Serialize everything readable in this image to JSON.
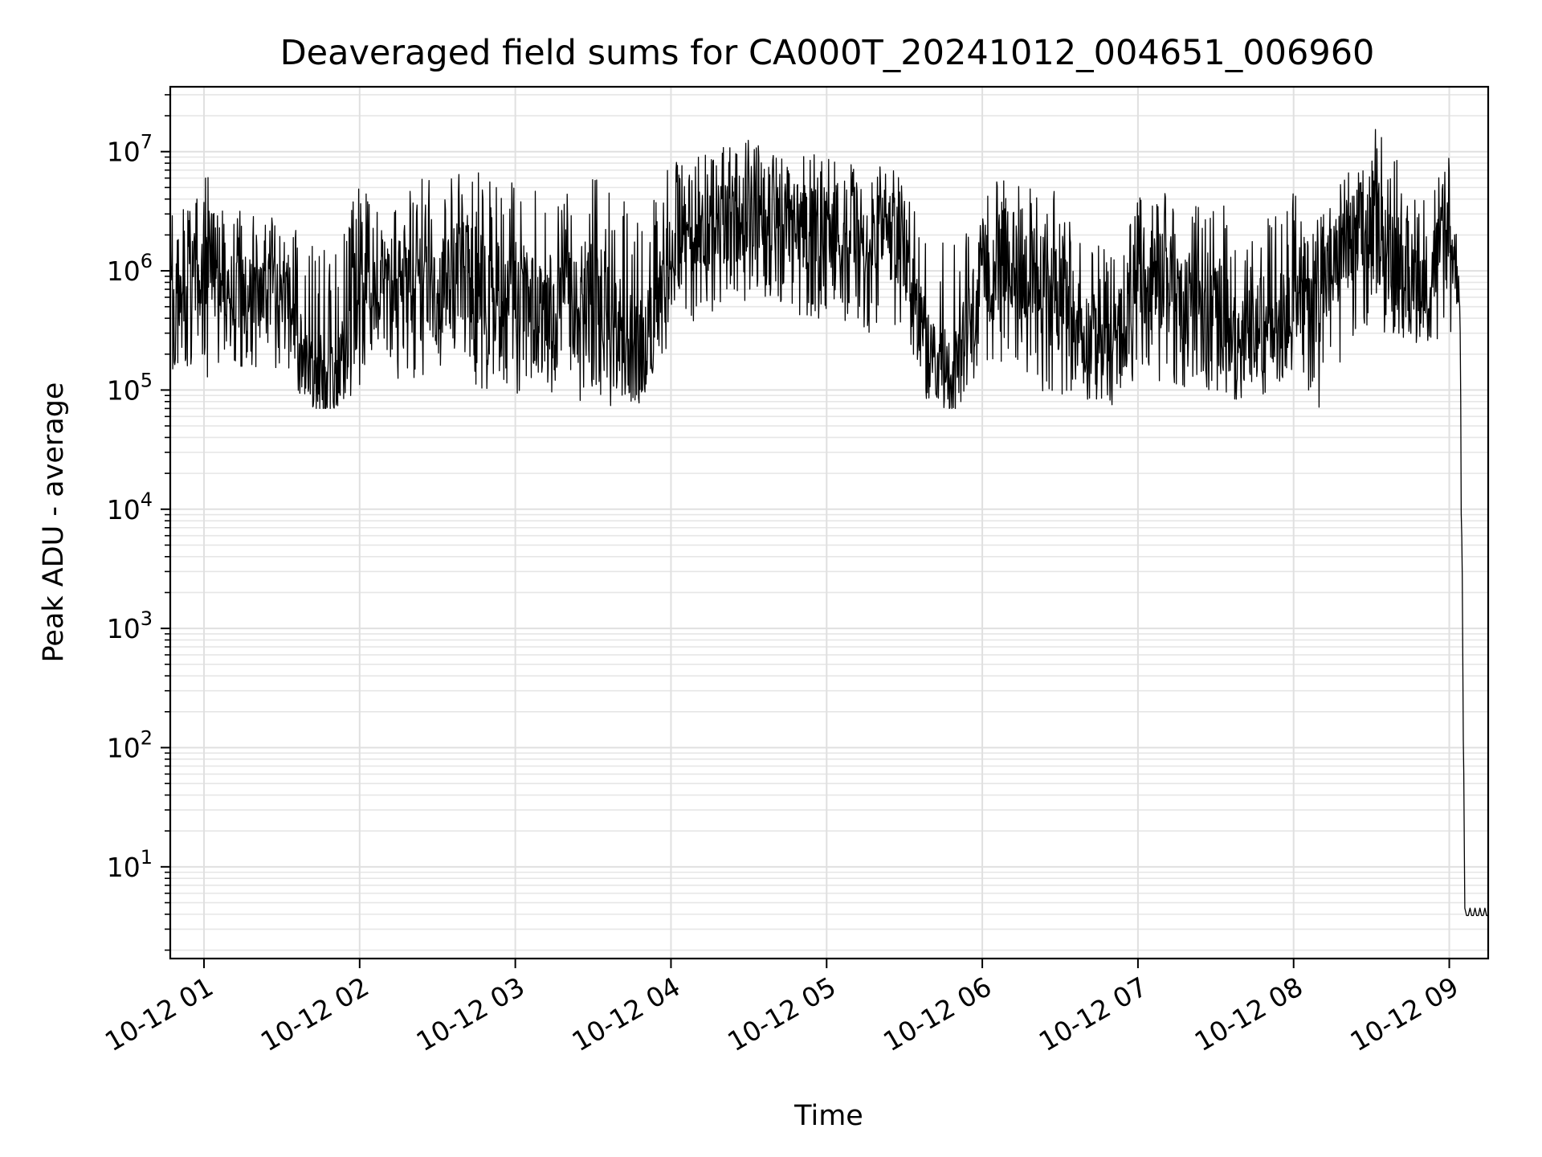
{
  "chart_data": {
    "type": "line",
    "title": "Deaveraged field sums for CA000T_20241012_004651_006960",
    "xlabel": "Time",
    "ylabel": "Peak ADU - average",
    "yscale": "log",
    "ylim": [
      1.7,
      35000000
    ],
    "xlim": [
      "2024-10-12T00:47:00",
      "2024-10-12T09:15:00"
    ],
    "grid": true,
    "line_color": "#000000",
    "x_ticks": [
      {
        "value": "2024-10-12T01:00:00",
        "label": "10-12 01"
      },
      {
        "value": "2024-10-12T02:00:00",
        "label": "10-12 02"
      },
      {
        "value": "2024-10-12T03:00:00",
        "label": "10-12 03"
      },
      {
        "value": "2024-10-12T04:00:00",
        "label": "10-12 04"
      },
      {
        "value": "2024-10-12T05:00:00",
        "label": "10-12 05"
      },
      {
        "value": "2024-10-12T06:00:00",
        "label": "10-12 06"
      },
      {
        "value": "2024-10-12T07:00:00",
        "label": "10-12 07"
      },
      {
        "value": "2024-10-12T08:00:00",
        "label": "10-12 08"
      },
      {
        "value": "2024-10-12T09:00:00",
        "label": "10-12 09"
      }
    ],
    "y_ticks": [
      {
        "value": 10,
        "base": "10",
        "exp": "1"
      },
      {
        "value": 100,
        "base": "10",
        "exp": "2"
      },
      {
        "value": 1000,
        "base": "10",
        "exp": "3"
      },
      {
        "value": 10000,
        "base": "10",
        "exp": "4"
      },
      {
        "value": 100000,
        "base": "10",
        "exp": "5"
      },
      {
        "value": 1000000,
        "base": "10",
        "exp": "6"
      },
      {
        "value": 10000000,
        "base": "10",
        "exp": "7"
      }
    ],
    "series": [
      {
        "x": [
          "2024-10-12T00:47:00",
          "2024-10-12T01:00:00",
          "2024-10-12T01:10:00",
          "2024-10-12T01:20:00",
          "2024-10-12T01:30:00",
          "2024-10-12T01:40:00",
          "2024-10-12T01:50:00",
          "2024-10-12T02:00:00",
          "2024-10-12T02:10:00",
          "2024-10-12T02:20:00",
          "2024-10-12T02:30:00",
          "2024-10-12T02:40:00",
          "2024-10-12T02:50:00",
          "2024-10-12T03:00:00",
          "2024-10-12T03:10:00",
          "2024-10-12T03:20:00",
          "2024-10-12T03:30:00",
          "2024-10-12T03:40:00",
          "2024-10-12T03:50:00",
          "2024-10-12T04:00:00",
          "2024-10-12T04:10:00",
          "2024-10-12T04:20:00",
          "2024-10-12T04:30:00",
          "2024-10-12T04:40:00",
          "2024-10-12T04:50:00",
          "2024-10-12T05:00:00",
          "2024-10-12T05:10:00",
          "2024-10-12T05:20:00",
          "2024-10-12T05:30:00",
          "2024-10-12T05:40:00",
          "2024-10-12T05:50:00",
          "2024-10-12T06:00:00",
          "2024-10-12T06:10:00",
          "2024-10-12T06:20:00",
          "2024-10-12T06:30:00",
          "2024-10-12T06:40:00",
          "2024-10-12T06:50:00",
          "2024-10-12T07:00:00",
          "2024-10-12T07:10:00",
          "2024-10-12T07:20:00",
          "2024-10-12T07:30:00",
          "2024-10-12T07:40:00",
          "2024-10-12T07:50:00",
          "2024-10-12T08:00:00",
          "2024-10-12T08:10:00",
          "2024-10-12T08:20:00",
          "2024-10-12T08:30:00",
          "2024-10-12T08:40:00",
          "2024-10-12T08:50:00",
          "2024-10-12T09:00:00",
          "2024-10-12T09:04:00",
          "2024-10-12T09:06:00",
          "2024-10-12T09:08:00",
          "2024-10-12T09:15:00"
        ],
        "y_median": [
          600000,
          1500000,
          700000,
          500000,
          900000,
          150000,
          100000,
          700000,
          800000,
          900000,
          600000,
          1000000,
          500000,
          600000,
          400000,
          500000,
          600000,
          300000,
          200000,
          1200000,
          2000000,
          2500000,
          3000000,
          3000000,
          2500000,
          2500000,
          2000000,
          2500000,
          1500000,
          150000,
          130000,
          900000,
          1200000,
          800000,
          600000,
          300000,
          200000,
          800000,
          900000,
          600000,
          500000,
          250000,
          400000,
          700000,
          700000,
          1500000,
          2500000,
          1500000,
          800000,
          2000000,
          800000,
          3.9,
          3.9,
          3.9
        ],
        "y_low": [
          150000,
          110000,
          150000,
          150000,
          150000,
          70000,
          70000,
          100000,
          150000,
          90000,
          120000,
          90000,
          90000,
          90000,
          80000,
          80000,
          80000,
          70000,
          70000,
          250000,
          400000,
          500000,
          500000,
          500000,
          400000,
          400000,
          300000,
          300000,
          150000,
          70000,
          70000,
          150000,
          150000,
          100000,
          90000,
          80000,
          70000,
          100000,
          120000,
          100000,
          90000,
          80000,
          90000,
          150000,
          70000,
          200000,
          300000,
          300000,
          200000,
          300000,
          250000,
          3.9,
          3.9,
          3.9
        ],
        "y_high": [
          4000000,
          9500000,
          3500000,
          3000000,
          4000000,
          1800000,
          1500000,
          6000000,
          2500000,
          6000000,
          6000000,
          7000000,
          7500000,
          5500000,
          5000000,
          5500000,
          6500000,
          5000000,
          3000000,
          8000000,
          9000000,
          11000000,
          13000000,
          12000000,
          11000000,
          10000000,
          9000000,
          8000000,
          7000000,
          1800000,
          1800000,
          5500000,
          6000000,
          5500000,
          4500000,
          2000000,
          1800000,
          5000000,
          5000000,
          3500000,
          5000000,
          2000000,
          3000000,
          6000000,
          3000000,
          7000000,
          18000000,
          9000000,
          4500000,
          12000000,
          2500000,
          4.5,
          4.5,
          4.5
        ]
      }
    ]
  }
}
